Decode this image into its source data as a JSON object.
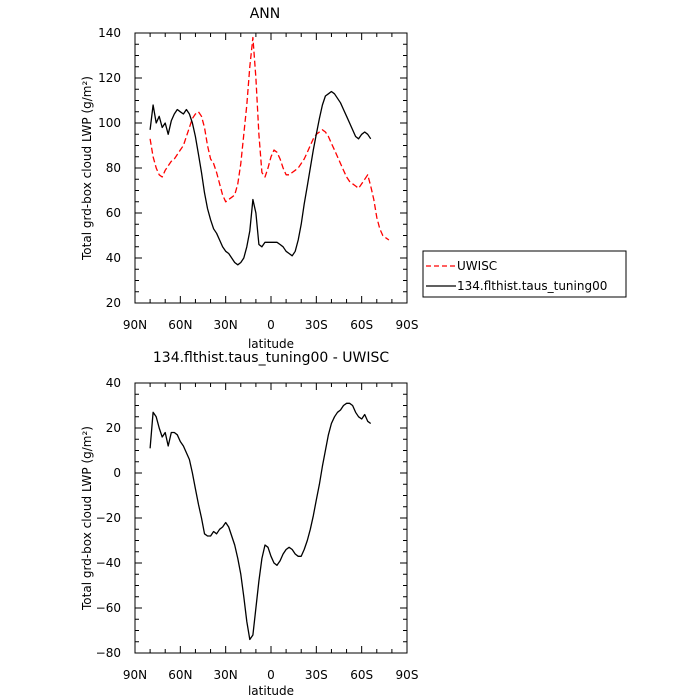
{
  "chart_data": [
    {
      "type": "line",
      "title": "ANN",
      "xlabel": "latitude",
      "ylabel": "Total grd-box cloud LWP (g/m²)",
      "xlim": [
        90,
        -90
      ],
      "ylim": [
        20,
        140
      ],
      "x_ticks": [
        90,
        60,
        30,
        0,
        -30,
        -60,
        -90
      ],
      "x_tick_labels": [
        "90N",
        "60N",
        "30N",
        "0",
        "30S",
        "60S",
        "90S"
      ],
      "y_ticks": [
        20,
        40,
        60,
        80,
        100,
        120,
        140
      ],
      "y_tick_labels": [
        "20",
        "40",
        "60",
        "80",
        "100",
        "120",
        "140"
      ],
      "legend_position": "right",
      "series": [
        {
          "name": "UWISC",
          "color": "#ff0000",
          "dash": "dashed",
          "x": [
            80,
            78,
            76,
            74,
            72,
            70,
            68,
            66,
            64,
            62,
            60,
            58,
            56,
            54,
            52,
            50,
            48,
            46,
            44,
            42,
            40,
            38,
            36,
            34,
            32,
            30,
            28,
            26,
            24,
            22,
            20,
            18,
            16,
            14,
            12,
            10,
            8,
            6,
            4,
            2,
            0,
            -2,
            -4,
            -6,
            -8,
            -10,
            -12,
            -14,
            -16,
            -18,
            -20,
            -22,
            -24,
            -26,
            -28,
            -30,
            -32,
            -34,
            -36,
            -38,
            -40,
            -42,
            -44,
            -46,
            -48,
            -50,
            -52,
            -54,
            -56,
            -58,
            -60,
            -62,
            -64,
            -66,
            -68,
            -70,
            -72,
            -74,
            -76,
            -78
          ],
          "y": [
            93,
            85,
            80,
            77,
            76,
            79,
            81,
            83,
            84,
            86,
            88,
            90,
            94,
            98,
            102,
            104,
            105,
            103,
            98,
            90,
            84,
            82,
            78,
            73,
            68,
            65,
            66,
            67,
            68,
            73,
            82,
            95,
            108,
            125,
            138,
            120,
            95,
            78,
            76,
            80,
            85,
            88,
            87,
            84,
            80,
            77,
            77,
            78,
            79,
            80,
            82,
            84,
            87,
            90,
            93,
            95,
            96,
            97,
            96,
            94,
            91,
            88,
            85,
            82,
            79,
            76,
            74,
            73,
            72,
            71,
            73,
            75,
            77,
            72,
            66,
            58,
            53,
            50,
            49,
            48
          ]
        },
        {
          "name": "134.flthist.taus_tuning00",
          "color": "#000000",
          "dash": "solid",
          "x": [
            80,
            78,
            76,
            74,
            72,
            70,
            68,
            66,
            64,
            62,
            60,
            58,
            56,
            54,
            52,
            50,
            48,
            46,
            44,
            42,
            40,
            38,
            36,
            34,
            32,
            30,
            28,
            26,
            24,
            22,
            20,
            18,
            16,
            14,
            12,
            10,
            8,
            6,
            4,
            2,
            0,
            -2,
            -4,
            -6,
            -8,
            -10,
            -12,
            -14,
            -16,
            -18,
            -20,
            -22,
            -24,
            -26,
            -28,
            -30,
            -32,
            -34,
            -36,
            -38,
            -40,
            -42,
            -44,
            -46,
            -48,
            -50,
            -52,
            -54,
            -56,
            -58,
            -60,
            -62,
            -64,
            -66
          ],
          "y": [
            97,
            108,
            100,
            103,
            98,
            100,
            95,
            101,
            104,
            106,
            105,
            104,
            106,
            104,
            100,
            94,
            86,
            78,
            69,
            62,
            57,
            53,
            51,
            48,
            45,
            43,
            42,
            40,
            38,
            37,
            38,
            40,
            45,
            52,
            66,
            60,
            46,
            45,
            47,
            47,
            47,
            47,
            47,
            46,
            45,
            43,
            42,
            41,
            43,
            48,
            55,
            64,
            72,
            80,
            88,
            95,
            102,
            108,
            112,
            113,
            114,
            113,
            111,
            109,
            106,
            103,
            100,
            97,
            94,
            93,
            95,
            96,
            95,
            93
          ]
        }
      ]
    },
    {
      "type": "line",
      "title": "134.flthist.taus_tuning00 - UWISC",
      "xlabel": "latitude",
      "ylabel": "Total grd-box cloud LWP (g/m²)",
      "xlim": [
        90,
        -90
      ],
      "ylim": [
        -80,
        40
      ],
      "x_ticks": [
        90,
        60,
        30,
        0,
        -30,
        -60,
        -90
      ],
      "x_tick_labels": [
        "90N",
        "60N",
        "30N",
        "0",
        "30S",
        "60S",
        "90S"
      ],
      "y_ticks": [
        -80,
        -60,
        -40,
        -20,
        0,
        20,
        40
      ],
      "y_tick_labels": [
        "−80",
        "−60",
        "−40",
        "−20",
        "0",
        "20",
        "40"
      ],
      "series": [
        {
          "color": "#000000",
          "dash": "solid",
          "x": [
            80,
            78,
            76,
            74,
            72,
            70,
            68,
            66,
            64,
            62,
            60,
            58,
            56,
            54,
            52,
            50,
            48,
            46,
            44,
            42,
            40,
            38,
            36,
            34,
            32,
            30,
            28,
            26,
            24,
            22,
            20,
            18,
            16,
            14,
            12,
            10,
            8,
            6,
            4,
            2,
            0,
            -2,
            -4,
            -6,
            -8,
            -10,
            -12,
            -14,
            -16,
            -18,
            -20,
            -22,
            -24,
            -26,
            -28,
            -30,
            -32,
            -34,
            -36,
            -38,
            -40,
            -42,
            -44,
            -46,
            -48,
            -50,
            -52,
            -54,
            -56,
            -58,
            -60,
            -62,
            -64,
            -66
          ],
          "y": [
            11,
            27,
            25,
            20,
            16,
            18,
            12,
            18,
            18,
            17,
            14,
            12,
            9,
            6,
            0,
            -7,
            -14,
            -20,
            -27,
            -28,
            -28,
            -26,
            -27,
            -25,
            -24,
            -22,
            -24,
            -28,
            -32,
            -38,
            -45,
            -55,
            -66,
            -74,
            -72,
            -60,
            -48,
            -38,
            -32,
            -33,
            -37,
            -40,
            -41,
            -39,
            -36,
            -34,
            -33,
            -34,
            -36,
            -37,
            -37,
            -34,
            -30,
            -25,
            -19,
            -12,
            -5,
            3,
            10,
            17,
            22,
            25,
            27,
            28,
            30,
            31,
            31,
            30,
            27,
            25,
            24,
            26,
            23,
            22
          ]
        }
      ]
    }
  ]
}
